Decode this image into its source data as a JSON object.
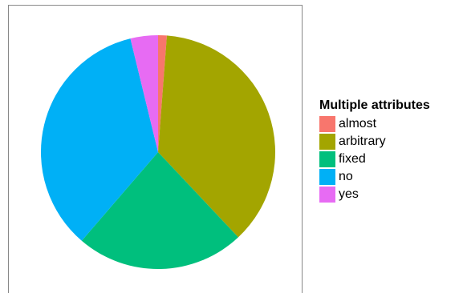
{
  "chart_data": {
    "type": "pie",
    "title": "",
    "legend_title": "Multiple attributes",
    "legend_placement": "right",
    "slices": [
      {
        "label": "almost",
        "value": 1.2,
        "color": "#F8766D"
      },
      {
        "label": "arbitrary",
        "value": 36.8,
        "color": "#A3A500"
      },
      {
        "label": "fixed",
        "value": 23.3,
        "color": "#00BF7D"
      },
      {
        "label": "no",
        "value": 34.9,
        "color": "#00B0F6"
      },
      {
        "label": "yes",
        "value": 3.8,
        "color": "#E76BF3"
      }
    ]
  }
}
